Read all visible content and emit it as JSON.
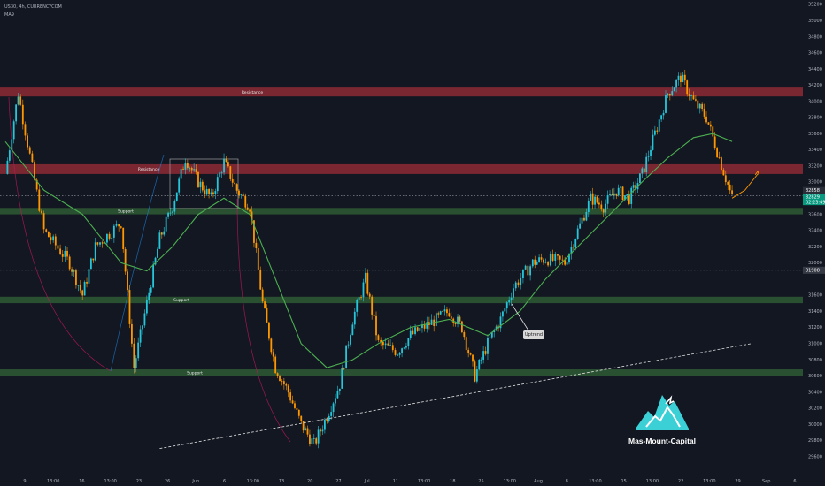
{
  "header": {
    "symbol_line": "US30, 4h, CURRENCYCOM",
    "indicator_line": "MA9"
  },
  "colors": {
    "background": "#131722",
    "bull": "#26c6da",
    "bear": "#ff9800",
    "ma": "#4caf50",
    "resistance_zone": "#8e2a35",
    "support_zone": "#2f5b35",
    "projection": "#ff9800",
    "accent_logo": "#3ad0d6"
  },
  "annotations": {
    "resistance_top": "Resistance",
    "resistance_mid": "Resistance",
    "support_upper": "Support",
    "support_mid": "Support",
    "support_low": "Support",
    "uptrend": "Uptrend"
  },
  "brand": {
    "name": "Mas-Mount-Capital",
    "icon": "mountain-logo-icon"
  },
  "chart_data": {
    "type": "candlestick",
    "title": "",
    "xlabel": "",
    "ylabel": "",
    "ylim": [
      29400,
      35200
    ],
    "y_ticks": [
      35200,
      35000,
      34800,
      34600,
      34400,
      34200,
      34000,
      33800,
      33600,
      33400,
      33200,
      33000,
      32600,
      32400,
      32200,
      32000,
      31600,
      31400,
      31200,
      31000,
      30800,
      30600,
      30400,
      30200,
      30000,
      29800,
      29600
    ],
    "x_ticks": [
      "9",
      "13:00",
      "16",
      "13:00",
      "23",
      "26",
      "Jun",
      "6",
      "13:00",
      "13",
      "20",
      "27",
      "Jul",
      "11",
      "13:00",
      "18",
      "25",
      "13:00",
      "Aug",
      "8",
      "13:00",
      "15",
      "13:00",
      "22",
      "13:00",
      "29",
      "Sep",
      "6"
    ],
    "price_labels": {
      "current": "32829",
      "upper_box": "32858",
      "timer": "02:23:49",
      "dotted_level": "31908"
    },
    "zones": [
      {
        "name": "Resistance",
        "from": 34060,
        "to": 34170,
        "color": "resistance"
      },
      {
        "name": "Resistance",
        "from": 33100,
        "to": 33220,
        "color": "resistance"
      },
      {
        "name": "Support",
        "from": 32600,
        "to": 32680,
        "color": "support"
      },
      {
        "name": "Support",
        "from": 31500,
        "to": 31580,
        "color": "support"
      },
      {
        "name": "Support",
        "from": 30600,
        "to": 30680,
        "color": "support"
      }
    ],
    "reference_lines": {
      "current_price": 32829,
      "dotted_level": 31908
    },
    "trendline": {
      "from": {
        "x": "May 30",
        "y": 29700
      },
      "to": {
        "x": "Aug 30",
        "y": 31000
      }
    },
    "price_path": [
      [
        "May 6",
        33100
      ],
      [
        "May 8",
        34100
      ],
      [
        "May 12",
        32400
      ],
      [
        "May 16",
        32000
      ],
      [
        "May 18",
        31600
      ],
      [
        "May 20",
        32200
      ],
      [
        "May 24",
        32500
      ],
      [
        "May 26",
        30700
      ],
      [
        "May 28",
        31500
      ],
      [
        "May 30",
        32300
      ],
      [
        "Jun 1",
        32700
      ],
      [
        "Jun 3",
        33300
      ],
      [
        "Jun 5",
        33000
      ],
      [
        "Jun 7",
        32800
      ],
      [
        "Jun 9",
        33250
      ],
      [
        "Jun 11",
        32900
      ],
      [
        "Jun 13",
        32700
      ],
      [
        "Jun 15",
        31500
      ],
      [
        "Jun 17",
        30700
      ],
      [
        "Jun 19",
        30400
      ],
      [
        "Jun 21",
        30000
      ],
      [
        "Jun 23",
        29750
      ],
      [
        "Jun 25",
        30100
      ],
      [
        "Jun 27",
        30500
      ],
      [
        "Jun 29",
        31300
      ],
      [
        "Jul 1",
        31800
      ],
      [
        "Jul 3",
        31000
      ],
      [
        "Jul 6",
        30900
      ],
      [
        "Jul 8",
        31100
      ],
      [
        "Jul 12",
        31300
      ],
      [
        "Jul 14",
        31400
      ],
      [
        "Jul 16",
        31200
      ],
      [
        "Jul 18",
        30600
      ],
      [
        "Jul 20",
        31000
      ],
      [
        "Jul 22",
        31300
      ],
      [
        "Jul 24",
        31700
      ],
      [
        "Jul 27",
        32000
      ],
      [
        "Jul 29",
        32050
      ],
      [
        "Aug 1",
        32000
      ],
      [
        "Aug 3",
        32400
      ],
      [
        "Aug 5",
        32800
      ],
      [
        "Aug 7",
        32700
      ],
      [
        "Aug 9",
        32900
      ],
      [
        "Aug 11",
        32800
      ],
      [
        "Aug 13",
        33100
      ],
      [
        "Aug 15",
        33600
      ],
      [
        "Aug 17",
        34100
      ],
      [
        "Aug 19",
        34300
      ],
      [
        "Aug 21",
        34000
      ],
      [
        "Aug 23",
        33800
      ],
      [
        "Aug 25",
        33300
      ],
      [
        "Aug 27",
        32800
      ]
    ],
    "moving_average": [
      [
        "May 6",
        33500
      ],
      [
        "May 12",
        32900
      ],
      [
        "May 18",
        32600
      ],
      [
        "May 24",
        32000
      ],
      [
        "May 28",
        31900
      ],
      [
        "Jun 1",
        32200
      ],
      [
        "Jun 5",
        32600
      ],
      [
        "Jun 9",
        32800
      ],
      [
        "Jun 13",
        32600
      ],
      [
        "Jun 17",
        31800
      ],
      [
        "Jun 21",
        31000
      ],
      [
        "Jun 25",
        30700
      ],
      [
        "Jun 29",
        30800
      ],
      [
        "Jul 3",
        31000
      ],
      [
        "Jul 8",
        31200
      ],
      [
        "Jul 14",
        31300
      ],
      [
        "Jul 20",
        31100
      ],
      [
        "Jul 25",
        31400
      ],
      [
        "Jul 29",
        31800
      ],
      [
        "Aug 3",
        32200
      ],
      [
        "Aug 8",
        32600
      ],
      [
        "Aug 13",
        33000
      ],
      [
        "Aug 17",
        33300
      ],
      [
        "Aug 21",
        33550
      ],
      [
        "Aug 24",
        33600
      ],
      [
        "Aug 27",
        33500
      ]
    ],
    "projection": [
      [
        "Aug 27",
        32800
      ],
      [
        "Aug 29",
        32900
      ],
      [
        "Aug 31",
        33100
      ]
    ]
  }
}
